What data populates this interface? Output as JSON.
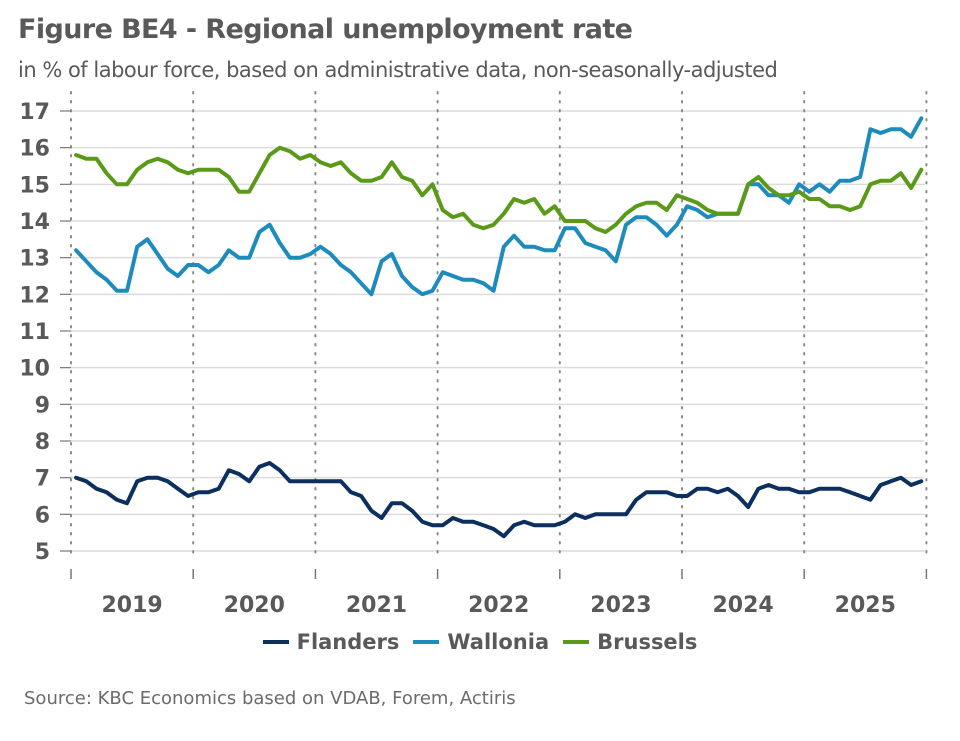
{
  "header": {
    "title": "Figure BE4 - Regional unemployment rate",
    "subtitle": "in % of labour force, based on administrative data, non-seasonally-adjusted"
  },
  "source": "Source: KBC Economics based on VDAB, Forem, Actiris",
  "colors": {
    "Flanders": "#0b2f5e",
    "Wallonia": "#1e8bbd",
    "Brussels": "#5a9a18",
    "grid": "#dcdcdc",
    "text": "#595959"
  },
  "chart_data": {
    "type": "line",
    "title": "Figure BE4 - Regional unemployment rate",
    "subtitle": "in % of labour force, based on administrative data, non-seasonally-adjusted",
    "xlabel": "",
    "ylabel": "",
    "frequency": "monthly",
    "x_start": "2019-01",
    "x_end": "2025-12",
    "x_tick_labels": [
      "2019",
      "2020",
      "2021",
      "2022",
      "2023",
      "2024",
      "2025"
    ],
    "ylim": [
      5,
      17
    ],
    "y_ticks": [
      5,
      6,
      7,
      8,
      9,
      10,
      11,
      12,
      13,
      14,
      15,
      16,
      17
    ],
    "grid": "horizontal",
    "legend_position": "bottom",
    "series": [
      {
        "name": "Flanders",
        "values": [
          7.0,
          6.9,
          6.7,
          6.6,
          6.4,
          6.3,
          6.9,
          7.0,
          7.0,
          6.9,
          6.7,
          6.5,
          6.6,
          6.6,
          6.7,
          7.2,
          7.1,
          6.9,
          7.3,
          7.4,
          7.2,
          6.9,
          6.9,
          6.9,
          6.9,
          6.9,
          6.9,
          6.6,
          6.5,
          6.1,
          5.9,
          6.3,
          6.3,
          6.1,
          5.8,
          5.7,
          5.7,
          5.9,
          5.8,
          5.8,
          5.7,
          5.6,
          5.4,
          5.7,
          5.8,
          5.7,
          5.7,
          5.7,
          5.8,
          6.0,
          5.9,
          6.0,
          6.0,
          6.0,
          6.0,
          6.4,
          6.6,
          6.6,
          6.6,
          6.5,
          6.5,
          6.7,
          6.7,
          6.6,
          6.7,
          6.5,
          6.2,
          6.7,
          6.8,
          6.7,
          6.7,
          6.6,
          6.6,
          6.7,
          6.7,
          6.7,
          6.6,
          6.5,
          6.4,
          6.8,
          6.9,
          7.0,
          6.8,
          6.9
        ]
      },
      {
        "name": "Wallonia",
        "values": [
          13.2,
          12.9,
          12.6,
          12.4,
          12.1,
          12.1,
          13.3,
          13.5,
          13.1,
          12.7,
          12.5,
          12.8,
          12.8,
          12.6,
          12.8,
          13.2,
          13.0,
          13.0,
          13.7,
          13.9,
          13.4,
          13.0,
          13.0,
          13.1,
          13.3,
          13.1,
          12.8,
          12.6,
          12.3,
          12.0,
          12.9,
          13.1,
          12.5,
          12.2,
          12.0,
          12.1,
          12.6,
          12.5,
          12.4,
          12.4,
          12.3,
          12.1,
          13.3,
          13.6,
          13.3,
          13.3,
          13.2,
          13.2,
          13.8,
          13.8,
          13.4,
          13.3,
          13.2,
          12.9,
          13.9,
          14.1,
          14.1,
          13.9,
          13.6,
          13.9,
          14.4,
          14.3,
          14.1,
          14.2,
          14.2,
          14.2,
          15.0,
          15.0,
          14.7,
          14.7,
          14.5,
          15.0,
          14.8,
          15.0,
          14.8,
          15.1,
          15.1,
          15.2,
          16.5,
          16.4,
          16.5,
          16.5,
          16.3,
          16.8
        ]
      },
      {
        "name": "Brussels",
        "values": [
          15.8,
          15.7,
          15.7,
          15.3,
          15.0,
          15.0,
          15.4,
          15.6,
          15.7,
          15.6,
          15.4,
          15.3,
          15.4,
          15.4,
          15.4,
          15.2,
          14.8,
          14.8,
          15.3,
          15.8,
          16.0,
          15.9,
          15.7,
          15.8,
          15.6,
          15.5,
          15.6,
          15.3,
          15.1,
          15.1,
          15.2,
          15.6,
          15.2,
          15.1,
          14.7,
          15.0,
          14.3,
          14.1,
          14.2,
          13.9,
          13.8,
          13.9,
          14.2,
          14.6,
          14.5,
          14.6,
          14.2,
          14.4,
          14.0,
          14.0,
          14.0,
          13.8,
          13.7,
          13.9,
          14.2,
          14.4,
          14.5,
          14.5,
          14.3,
          14.7,
          14.6,
          14.5,
          14.3,
          14.2,
          14.2,
          14.2,
          15.0,
          15.2,
          14.9,
          14.7,
          14.7,
          14.8,
          14.6,
          14.6,
          14.4,
          14.4,
          14.3,
          14.4,
          15.0,
          15.1,
          15.1,
          15.3,
          14.9,
          15.4
        ]
      }
    ]
  }
}
